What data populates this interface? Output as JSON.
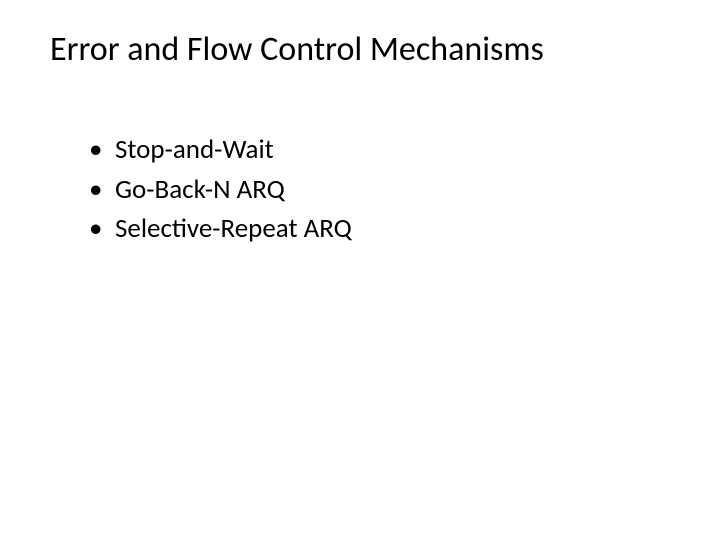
{
  "slide": {
    "title": "Error and Flow Control Mechanisms",
    "bullets": [
      "Stop-and-Wait",
      "Go-Back-N ARQ",
      "Selective-Repeat ARQ"
    ],
    "title_fontsize": 34,
    "bullet_fontsize": 27,
    "text_color": "#000000",
    "background_color": "#ffffff",
    "font_family": "Calibri"
  }
}
